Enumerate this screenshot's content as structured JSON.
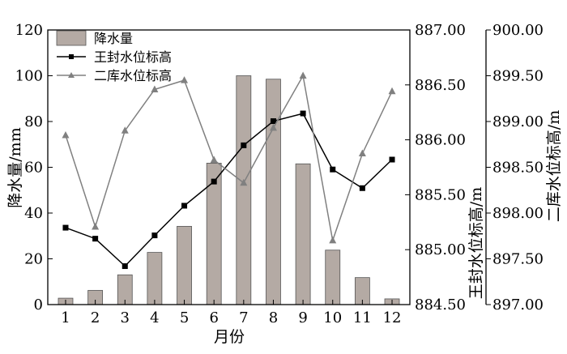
{
  "chart_data": {
    "type": "bar",
    "title": "",
    "xlabel": "月份",
    "categories": [
      "1",
      "2",
      "3",
      "4",
      "5",
      "6",
      "7",
      "8",
      "9",
      "10",
      "11",
      "12"
    ],
    "series": [
      {
        "name": "降水量",
        "type": "bar",
        "axis": "y1",
        "color": "#b4aaa4",
        "values": [
          2.8,
          6.2,
          13.0,
          22.8,
          34.2,
          61.8,
          100.0,
          98.5,
          61.5,
          23.8,
          11.8,
          2.5
        ]
      },
      {
        "name": "王封水位标高",
        "type": "line",
        "axis": "y2",
        "color": "#000000",
        "marker": "square",
        "values": [
          885.2,
          885.1,
          884.85,
          885.13,
          885.4,
          885.62,
          885.95,
          886.17,
          886.24,
          885.73,
          885.56,
          885.82
        ]
      },
      {
        "name": "二库水位标高",
        "type": "line",
        "axis": "y3",
        "color": "#808080",
        "marker": "triangle",
        "values": [
          898.85,
          897.85,
          898.9,
          899.35,
          899.45,
          898.58,
          898.33,
          898.93,
          899.5,
          897.7,
          898.65,
          899.33
        ]
      }
    ],
    "y1": {
      "label": "降水量/mm",
      "ylim": [
        0,
        120
      ],
      "ticks": [
        "0",
        "20",
        "40",
        "60",
        "80",
        "100",
        "120"
      ]
    },
    "y2": {
      "label": "王封水位标高/m",
      "ylim": [
        884.5,
        887.0
      ],
      "ticks": [
        "884.50",
        "885.00",
        "885.50",
        "886.00",
        "886.50",
        "887.00"
      ]
    },
    "y3": {
      "label": "二库水位标高/m",
      "ylim": [
        897.0,
        900.0
      ],
      "ticks": [
        "897.00",
        "897.50",
        "898.00",
        "898.50",
        "899.00",
        "899.50",
        "900.00"
      ]
    },
    "legend": "top-left",
    "grid": false
  }
}
